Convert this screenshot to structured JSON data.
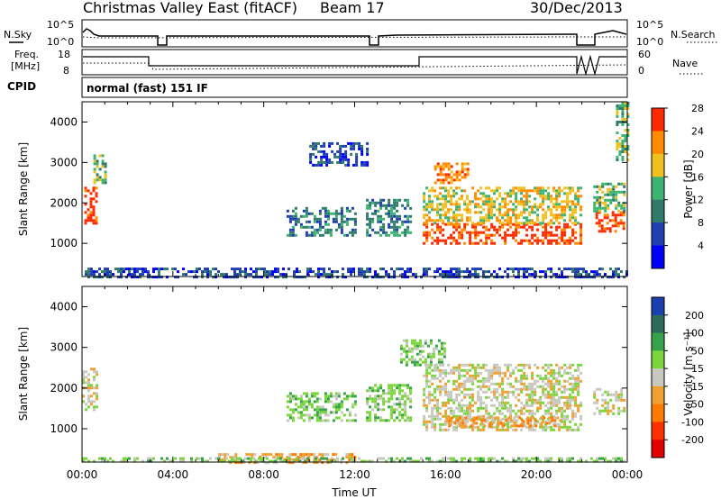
{
  "header": {
    "title": "Christmas Valley East (fitACF)",
    "beam": "Beam 17",
    "date": "30/Dec/2013"
  },
  "status_panels": {
    "nsky": {
      "label": "N.Sky",
      "ticks": [
        "10^5",
        "10^0"
      ]
    },
    "nsearch": {
      "label": "N.Search",
      "ticks": [
        "10^5",
        "10^0"
      ]
    },
    "freq": {
      "label_line1": "Freq.",
      "label_line2": "[MHz]",
      "ticks": [
        "18",
        "8"
      ]
    },
    "nave": {
      "label": "Nave",
      "ticks": [
        "60",
        "0"
      ]
    },
    "cpid": {
      "label": "CPID",
      "value": "normal (fast) 151 IF"
    }
  },
  "chart_data": [
    {
      "type": "heatmap",
      "name": "power",
      "xlabel": "",
      "ylabel": "Slant Range [km]",
      "x_ticks": [],
      "y_ticks": [
        "1000",
        "2000",
        "3000",
        "4000"
      ],
      "y_values": [
        1000,
        2000,
        3000,
        4000
      ],
      "ylim": [
        180,
        4500
      ],
      "xlim_hours": [
        0,
        24
      ],
      "colorbar": {
        "label": "Power [dB]",
        "ticks": [
          "4",
          "8",
          "12",
          "16",
          "20",
          "24",
          "28"
        ],
        "colors": [
          "#0000ff",
          "#1f3fb0",
          "#2f7a6a",
          "#3cb371",
          "#f0c020",
          "#ff8c00",
          "#ff2a00"
        ]
      },
      "regions": [
        {
          "t": [
            0.1,
            0.6
          ],
          "r": [
            1500,
            2400
          ],
          "level": 6
        },
        {
          "t": [
            0.5,
            1.0
          ],
          "r": [
            2500,
            3200
          ],
          "level": 3
        },
        {
          "t": [
            9.0,
            12.0
          ],
          "r": [
            1200,
            1900
          ],
          "level": 2
        },
        {
          "t": [
            10.0,
            12.5
          ],
          "r": [
            2900,
            3500
          ],
          "level": 1
        },
        {
          "t": [
            12.5,
            14.5
          ],
          "r": [
            1200,
            2100
          ],
          "level": 2
        },
        {
          "t": [
            15.0,
            22.0
          ],
          "r": [
            1000,
            1500
          ],
          "level": 6
        },
        {
          "t": [
            15.0,
            22.0
          ],
          "r": [
            1500,
            2400
          ],
          "level": 4
        },
        {
          "t": [
            15.5,
            17.0
          ],
          "r": [
            2500,
            3000
          ],
          "level": 5
        },
        {
          "t": [
            22.6,
            23.9
          ],
          "r": [
            1300,
            1800
          ],
          "level": 6
        },
        {
          "t": [
            22.5,
            23.9
          ],
          "r": [
            1800,
            2500
          ],
          "level": 3
        },
        {
          "t": [
            23.5,
            24.0
          ],
          "r": [
            3000,
            4500
          ],
          "level": 3
        },
        {
          "t": [
            0.0,
            24.0
          ],
          "r": [
            180,
            400
          ],
          "level": 1
        }
      ]
    },
    {
      "type": "heatmap",
      "name": "velocity",
      "xlabel": "Time UT",
      "ylabel": "Slant Range [km]",
      "x_ticks": [
        "00:00",
        "04:00",
        "08:00",
        "12:00",
        "16:00",
        "20:00",
        "00:00"
      ],
      "x_hours": [
        0,
        4,
        8,
        12,
        16,
        20,
        24
      ],
      "y_ticks": [
        "1000",
        "2000",
        "3000",
        "4000"
      ],
      "y_values": [
        1000,
        2000,
        3000,
        4000
      ],
      "ylim": [
        180,
        4500
      ],
      "xlim_hours": [
        0,
        24
      ],
      "colorbar": {
        "label": "Velocity [m s⁻¹]",
        "ticks": [
          "200",
          "100",
          "50",
          "15",
          "-15",
          "-50",
          "-100",
          "-200"
        ],
        "colors": [
          "#1a3fb0",
          "#2d6a5a",
          "#36a24a",
          "#7ad63c",
          "#c8c8c0",
          "#f0a030",
          "#ff7a00",
          "#ff3000",
          "#e00000"
        ]
      },
      "regions": [
        {
          "t": [
            0.0,
            0.6
          ],
          "r": [
            1500,
            2500
          ],
          "level": 4
        },
        {
          "t": [
            9.0,
            12.0
          ],
          "r": [
            1200,
            1900
          ],
          "level": 3
        },
        {
          "t": [
            12.5,
            14.5
          ],
          "r": [
            1200,
            2100
          ],
          "level": 3
        },
        {
          "t": [
            15.0,
            22.0
          ],
          "r": [
            1000,
            2600
          ],
          "level": 4
        },
        {
          "t": [
            16.0,
            21.0
          ],
          "r": [
            1100,
            1300
          ],
          "level": 5
        },
        {
          "t": [
            22.5,
            23.9
          ],
          "r": [
            1400,
            2000
          ],
          "level": 4
        },
        {
          "t": [
            14.0,
            16.0
          ],
          "r": [
            2600,
            3200
          ],
          "level": 3
        },
        {
          "t": [
            6.0,
            12.0
          ],
          "r": [
            180,
            400
          ],
          "level": 5
        },
        {
          "t": [
            0.0,
            24.0
          ],
          "r": [
            180,
            300
          ],
          "level": 3
        }
      ]
    }
  ]
}
